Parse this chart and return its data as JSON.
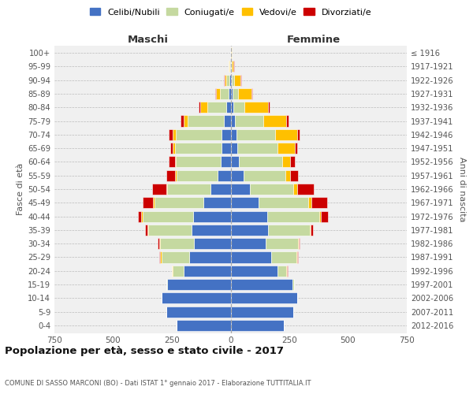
{
  "age_groups": [
    "0-4",
    "5-9",
    "10-14",
    "15-19",
    "20-24",
    "25-29",
    "30-34",
    "35-39",
    "40-44",
    "45-49",
    "50-54",
    "55-59",
    "60-64",
    "65-69",
    "70-74",
    "75-79",
    "80-84",
    "85-89",
    "90-94",
    "95-99",
    "100+"
  ],
  "birth_years": [
    "2012-2016",
    "2007-2011",
    "2002-2006",
    "1997-2001",
    "1992-1996",
    "1987-1991",
    "1982-1986",
    "1977-1981",
    "1972-1976",
    "1967-1971",
    "1962-1966",
    "1957-1961",
    "1952-1956",
    "1947-1951",
    "1942-1946",
    "1937-1941",
    "1932-1936",
    "1927-1931",
    "1922-1926",
    "1917-1921",
    "≤ 1916"
  ],
  "maschi_celibi": [
    230,
    275,
    295,
    270,
    200,
    175,
    155,
    165,
    160,
    115,
    85,
    55,
    42,
    40,
    38,
    28,
    20,
    10,
    6,
    3,
    2
  ],
  "maschi_coniugati": [
    0,
    0,
    0,
    5,
    45,
    120,
    145,
    185,
    215,
    210,
    185,
    175,
    190,
    195,
    195,
    155,
    80,
    35,
    12,
    3,
    0
  ],
  "maschi_vedovi": [
    0,
    0,
    0,
    0,
    5,
    5,
    5,
    5,
    5,
    5,
    5,
    5,
    5,
    10,
    15,
    15,
    30,
    18,
    8,
    2,
    0
  ],
  "maschi_divorziati": [
    0,
    0,
    0,
    0,
    0,
    5,
    5,
    10,
    15,
    45,
    60,
    40,
    25,
    12,
    15,
    15,
    5,
    2,
    2,
    0,
    0
  ],
  "femmine_nubili": [
    228,
    268,
    285,
    265,
    198,
    172,
    148,
    158,
    155,
    120,
    82,
    55,
    35,
    28,
    25,
    18,
    12,
    10,
    6,
    3,
    2
  ],
  "femmine_coniugate": [
    0,
    0,
    0,
    5,
    40,
    108,
    138,
    178,
    222,
    212,
    185,
    178,
    185,
    172,
    165,
    120,
    48,
    22,
    10,
    3,
    0
  ],
  "femmine_vedove": [
    0,
    0,
    0,
    0,
    2,
    3,
    3,
    5,
    8,
    12,
    18,
    22,
    32,
    72,
    92,
    98,
    98,
    58,
    25,
    6,
    2
  ],
  "femmine_divorziate": [
    0,
    0,
    0,
    0,
    2,
    5,
    5,
    10,
    28,
    68,
    68,
    32,
    20,
    12,
    10,
    12,
    8,
    3,
    3,
    2,
    0
  ],
  "colors": {
    "celibi": "#4472c4",
    "coniugati": "#c5d9a0",
    "vedovi": "#ffc000",
    "divorziati": "#cc0000"
  },
  "xlim": 750,
  "title": "Popolazione per età, sesso e stato civile - 2017",
  "subtitle": "COMUNE DI SASSO MARCONI (BO) - Dati ISTAT 1° gennaio 2017 - Elaborazione TUTTITALIA.IT",
  "ylabel_left": "Fasce di età",
  "ylabel_right": "Anni di nascita",
  "label_maschi": "Maschi",
  "label_femmine": "Femmine",
  "bg_color": "#f0f0f0",
  "bar_height": 0.82,
  "legend_labels": [
    "Celibi/Nubili",
    "Coniugati/e",
    "Vedovi/e",
    "Divorziati/e"
  ]
}
